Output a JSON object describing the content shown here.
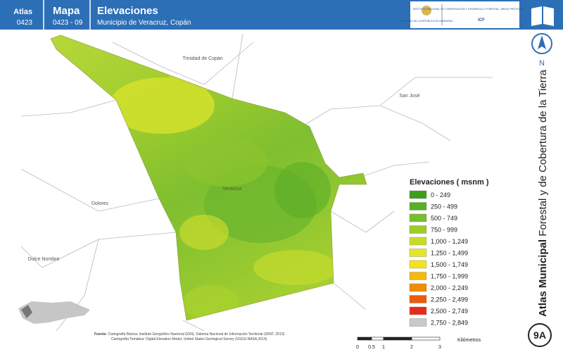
{
  "header": {
    "atlas_label": "Atlas",
    "atlas_code": "0423",
    "mapa_label": "Mapa",
    "mapa_code": "0423 - 09",
    "title": "Elevaciones",
    "subtitle": "Municipio de Veracruz, Copán"
  },
  "logo": {
    "government": "GOBIERNO DE LA REPÚBLICA DE HONDURAS",
    "institute": "INSTITUTO NACIONAL DE CONSERVACIÓN Y DESARROLLO FORESTAL, ÁREAS PROTEGIDAS Y VIDA SILVESTRE",
    "acronym": "ICF"
  },
  "places": [
    "Trinidad de Copán",
    "San José",
    "Veracruz",
    "Dolores",
    "Dulce Nombre"
  ],
  "legend": {
    "title": "Elevaciones ( msnm )",
    "items": [
      {
        "label": "0 - 249",
        "color": "#3c9e1c"
      },
      {
        "label": "250 - 499",
        "color": "#5aae28"
      },
      {
        "label": "500 - 749",
        "color": "#79bd2f"
      },
      {
        "label": "750 - 999",
        "color": "#9dcc2d"
      },
      {
        "label": "1,000 - 1,249",
        "color": "#c6dd27"
      },
      {
        "label": "1,250 - 1,499",
        "color": "#e3e628"
      },
      {
        "label": "1,500 - 1,749",
        "color": "#f3e31a"
      },
      {
        "label": "1,750 - 1,999",
        "color": "#f6b90b"
      },
      {
        "label": "2,000 - 2,249",
        "color": "#f08c06"
      },
      {
        "label": "2,250 - 2,499",
        "color": "#ec5a0c"
      },
      {
        "label": "2,500 - 2,749",
        "color": "#e62a1a"
      },
      {
        "label": "2,750 - 2,849",
        "color": "#c9c9c9"
      }
    ]
  },
  "scale": {
    "ticks": [
      "0",
      "0.5",
      "1",
      "2",
      "3"
    ],
    "unit": "Kilómetros"
  },
  "source": {
    "label": "Fuente:",
    "line1": "Cartografía Básica: Instituto Geográfico Nacional (IGN), Sistema Nacional de Información Territorial (SINIT, 2013)",
    "line2": "Cartografía Temática: Digital Elevation Model, United States Geological Survey (USGS-NASA,2014)"
  },
  "sidebar": {
    "north": "N",
    "title_bold": "Atlas Municipal",
    "title_rest": " Forestal y de Cobertura de la Tierra",
    "badge": "9A"
  }
}
